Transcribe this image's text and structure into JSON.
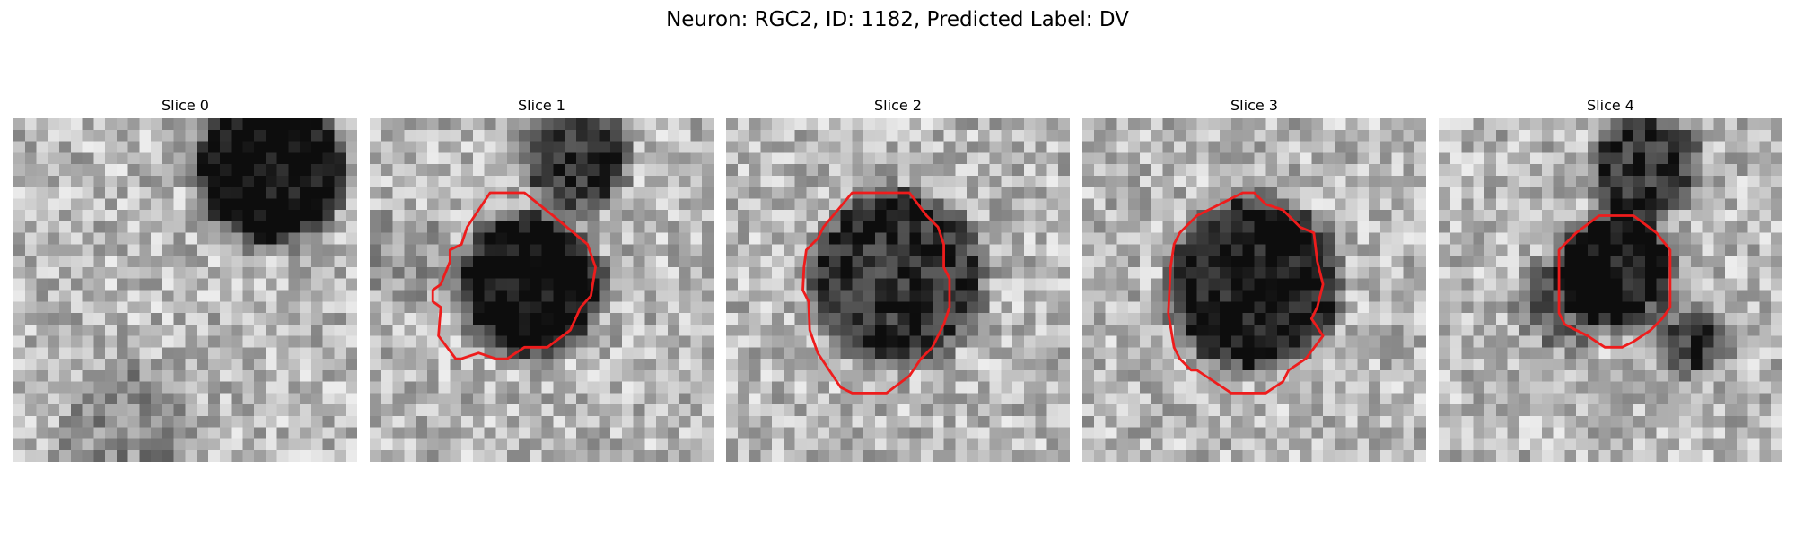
{
  "figure": {
    "title": "Neuron: RGC2, ID: 1182, Predicted Label: DV"
  },
  "panels": [
    {
      "title": "Slice 0",
      "has_contour": false
    },
    {
      "title": "Slice 1",
      "has_contour": true
    },
    {
      "title": "Slice 2",
      "has_contour": true
    },
    {
      "title": "Slice 3",
      "has_contour": true
    },
    {
      "title": "Slice 4",
      "has_contour": true
    }
  ],
  "colors": {
    "contour": "#ee1c1c",
    "background": "#ffffff"
  },
  "image": {
    "grid": 30,
    "colormap": "gray",
    "contour_icon": "red-outline"
  }
}
